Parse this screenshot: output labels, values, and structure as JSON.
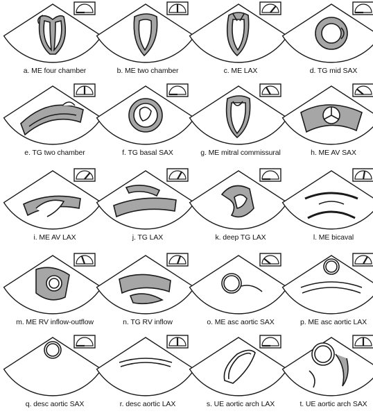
{
  "colors": {
    "stroke": "#1a1a1a",
    "fill": "#a6a6a6",
    "background": "#ffffff"
  },
  "icon": "probe-angle-icon",
  "views": [
    {
      "id": "a",
      "label": "a. ME four chamber",
      "angle_deg": 0
    },
    {
      "id": "b",
      "label": "b. ME two chamber",
      "angle_deg": 90
    },
    {
      "id": "c",
      "label": "c. ME LAX",
      "angle_deg": 130
    },
    {
      "id": "d",
      "label": "d. TG mid SAX",
      "angle_deg": 0
    },
    {
      "id": "e",
      "label": "e. TG two chamber",
      "angle_deg": 90
    },
    {
      "id": "f",
      "label": "f. TG basal SAX",
      "angle_deg": 0
    },
    {
      "id": "g",
      "label": "g. ME mitral commissural",
      "angle_deg": 60
    },
    {
      "id": "h",
      "label": "h. ME AV SAX",
      "angle_deg": 40
    },
    {
      "id": "i",
      "label": "i. ME AV LAX",
      "angle_deg": 130
    },
    {
      "id": "j",
      "label": "j. TG LAX",
      "angle_deg": 120
    },
    {
      "id": "k",
      "label": "k. deep TG LAX",
      "angle_deg": 0
    },
    {
      "id": "l",
      "label": "l. ME bicaval",
      "angle_deg": 100
    },
    {
      "id": "m",
      "label": "m. ME RV inflow-outflow",
      "angle_deg": 70
    },
    {
      "id": "n",
      "label": "n. TG RV inflow",
      "angle_deg": 110
    },
    {
      "id": "o",
      "label": "o. ME asc aortic SAX",
      "angle_deg": 40
    },
    {
      "id": "p",
      "label": "p. ME asc aortic LAX",
      "angle_deg": 120
    },
    {
      "id": "q",
      "label": "q. desc aortic SAX",
      "angle_deg": 0
    },
    {
      "id": "r",
      "label": "r. desc aortic LAX",
      "angle_deg": 90
    },
    {
      "id": "s",
      "label": "s. UE aortic arch LAX",
      "angle_deg": 0
    },
    {
      "id": "t",
      "label": "t. UE aortic arch SAX",
      "angle_deg": 90
    }
  ]
}
